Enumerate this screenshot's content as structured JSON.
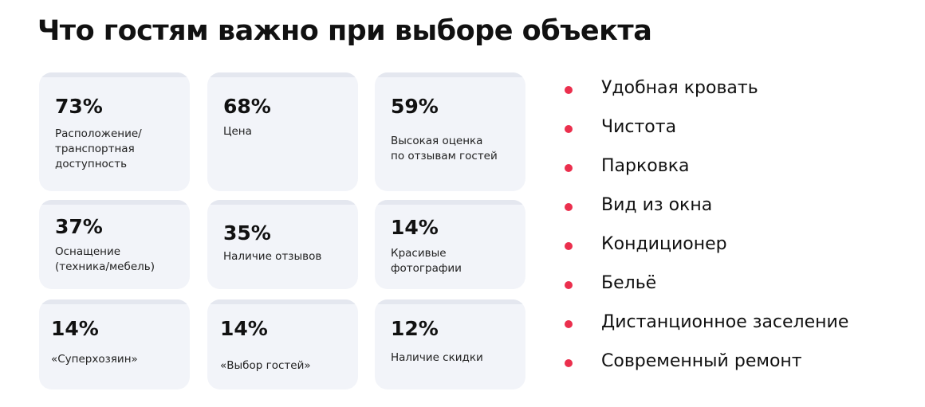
{
  "title": "Что гостям важно при выборе объекта",
  "cards": [
    {
      "percent": "73%",
      "label": "Расположение/\nтранспортная\nдоступность",
      "value": 73
    },
    {
      "percent": "68%",
      "label": "Цена",
      "value": 68
    },
    {
      "percent": "59%",
      "label": "Высокая оценка\nпо отзывам гостей",
      "value": 59
    },
    {
      "percent": "37%",
      "label": "Оснащение\n(техника/мебель)",
      "value": 37
    },
    {
      "percent": "35%",
      "label": "Наличие отзывов",
      "value": 35
    },
    {
      "percent": "14%",
      "label": "Красивые\nфотографии",
      "value": 14
    },
    {
      "percent": "14%",
      "label": "«Суперхозяин»",
      "value": 14
    },
    {
      "percent": "14%",
      "label": "«Выбор гостей»",
      "value": 14
    },
    {
      "percent": "12%",
      "label": "Наличие скидки",
      "value": 12
    }
  ],
  "bullets": [
    "Удобная кровать",
    "Чистота",
    "Парковка",
    "Вид из окна",
    "Кондиционер",
    "Бельё",
    "Дистанционное заселение",
    "Современный ремонт"
  ],
  "colors": {
    "accent": "#eb2f4d",
    "card_bg": "#f2f4f9",
    "text": "#111111"
  }
}
